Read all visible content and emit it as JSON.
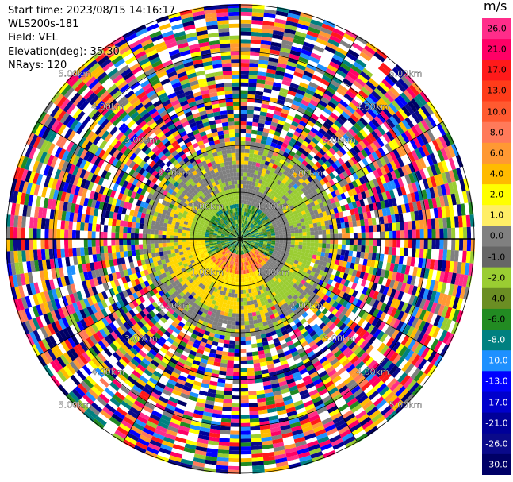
{
  "header": {
    "start_time": "Start time: 2023/08/15 14:16:17",
    "instrument": "WLS200s-181",
    "field": "Field: VEL",
    "elevation": "Elevation(deg): 35.30",
    "nrays": "NRays: 120"
  },
  "chart_data": {
    "type": "heatmap",
    "projection": "polar (PPI)",
    "field": "VEL",
    "nrays": 120,
    "ring_labels_km": [
      "1.00km",
      "2.00km",
      "3.00km",
      "4.00km",
      "5.00km"
    ],
    "colorbar": {
      "unit": "m/s",
      "tick_labels": [
        "26.0",
        "21.0",
        "17.0",
        "13.0",
        "10.0",
        "8.0",
        "6.0",
        "4.0",
        "2.0",
        "1.0",
        "0.0",
        "-1.0",
        "-2.0",
        "-4.0",
        "-6.0",
        "-8.0",
        "-10.0",
        "-13.0",
        "-17.0",
        "-21.0",
        "-26.0",
        "-30.0"
      ],
      "colors": [
        "#ff2d8a",
        "#ff0066",
        "#ff1a1a",
        "#ff3c1a",
        "#ff5a30",
        "#ff7a5a",
        "#ff9933",
        "#ffbb00",
        "#ffff00",
        "#ffee66",
        "#808080",
        "#666666",
        "#9acd32",
        "#6b8e23",
        "#228b22",
        "#008080",
        "#1e90ff",
        "#0000ff",
        "#0000cc",
        "#000099",
        "#0a0a8a",
        "#000066"
      ]
    }
  }
}
